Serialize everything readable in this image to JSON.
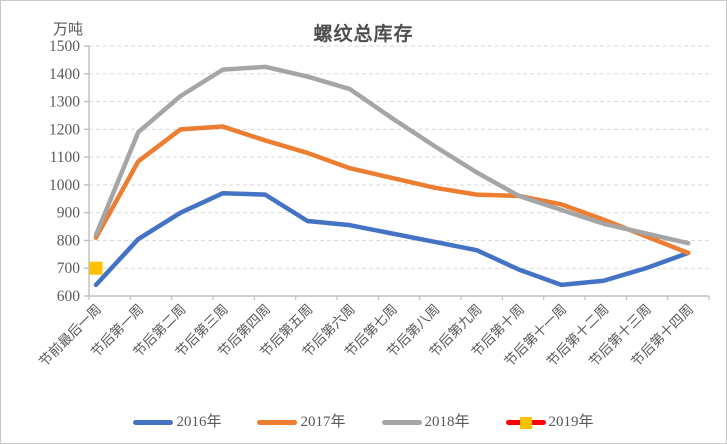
{
  "chart_data": {
    "type": "line",
    "title": "螺纹总库存",
    "ylabel": "万吨",
    "xlabel": "",
    "ylim": [
      600,
      1500
    ],
    "ytick_step": 100,
    "grid": "horizontal-dashed",
    "legend_position": "bottom",
    "categories": [
      "节前最后一周",
      "节后第一周",
      "节后第二周",
      "节后第三周",
      "节后第四周",
      "节后第五周",
      "节后第六周",
      "节后第七周",
      "节后第八周",
      "节后第九周",
      "节后第十周",
      "节后第十一周",
      "节后第十二周",
      "节后第十三周",
      "节后第十四周"
    ],
    "series": [
      {
        "name": "2016年",
        "color": "#4472C4",
        "values": [
          640,
          805,
          900,
          970,
          965,
          870,
          855,
          825,
          795,
          765,
          695,
          640,
          655,
          700,
          755
        ]
      },
      {
        "name": "2017年",
        "color": "#ED7D31",
        "values": [
          810,
          1085,
          1200,
          1210,
          1160,
          1115,
          1060,
          1025,
          990,
          965,
          960,
          930,
          875,
          815,
          755
        ]
      },
      {
        "name": "2018年",
        "color": "#A5A5A5",
        "values": [
          820,
          1190,
          1320,
          1415,
          1425,
          1390,
          1345,
          1240,
          1140,
          1045,
          960,
          910,
          860,
          825,
          790
        ]
      },
      {
        "name": "2019年",
        "color": "#FF0000",
        "marker": {
          "shape": "square",
          "color": "#FFC000",
          "size": 13
        },
        "values": [
          700,
          null,
          null,
          null,
          null,
          null,
          null,
          null,
          null,
          null,
          null,
          null,
          null,
          null,
          null
        ]
      }
    ],
    "colors": {
      "grid": "#D9D9D9",
      "axis": "#BFBFBF",
      "tick_text": "#595959",
      "title_text": "#4d4d4d"
    }
  }
}
